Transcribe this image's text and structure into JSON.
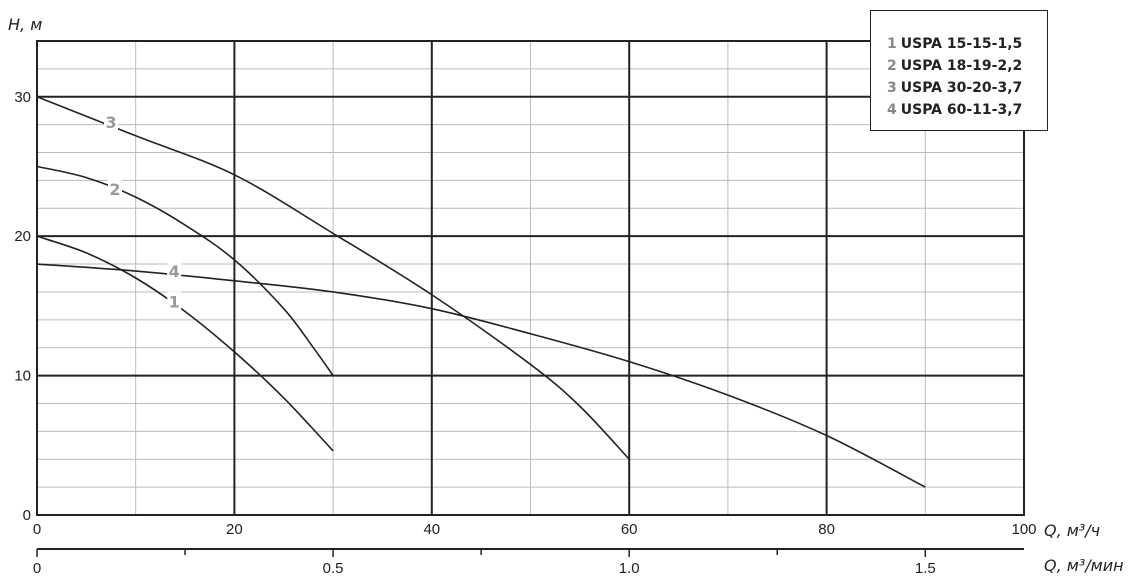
{
  "chart_data": {
    "type": "line",
    "ylabel": "H, м",
    "xlabel": "Q, м³/ч",
    "xlabel2": "Q, м³/мин",
    "xlim": [
      0,
      100
    ],
    "ylim": [
      0,
      34
    ],
    "xticks": [
      "0",
      "20",
      "40",
      "60",
      "80",
      "100"
    ],
    "yticks": [
      "0",
      "10",
      "20",
      "30"
    ],
    "x2ticks": [
      "0",
      "0.5",
      "1.0",
      "1.5"
    ],
    "x2ticks_values": [
      0,
      0.5,
      1.0,
      1.5
    ],
    "grid": true,
    "legend_position": "top-right",
    "series": [
      {
        "id": "1",
        "name": "USPA 15-15-1,5",
        "label_at": [
          13.9,
          15.3
        ],
        "x": [
          0,
          5,
          10,
          15,
          20,
          25,
          30
        ],
        "y": [
          20,
          18.8,
          17,
          14.6,
          11.7,
          8.4,
          4.6
        ]
      },
      {
        "id": "2",
        "name": "USPA 18-19-2,2",
        "label_at": [
          7.9,
          23.4
        ],
        "x": [
          0,
          5,
          10,
          15,
          20,
          25,
          28,
          30
        ],
        "y": [
          25,
          24.2,
          22.8,
          20.8,
          18.3,
          14.8,
          12,
          10
        ]
      },
      {
        "id": "3",
        "name": "USPA 30-20-3,7",
        "label_at": [
          7.5,
          28.2
        ],
        "x": [
          0,
          10,
          20,
          30,
          40,
          50,
          55,
          60
        ],
        "y": [
          30,
          27.2,
          24.4,
          20.2,
          15.8,
          10.8,
          7.8,
          4
        ]
      },
      {
        "id": "4",
        "name": "USPA 60-11-3,7",
        "label_at": [
          13.9,
          17.5
        ],
        "x": [
          0,
          10,
          20,
          30,
          40,
          50,
          60,
          70,
          80,
          90
        ],
        "y": [
          18,
          17.5,
          16.8,
          16,
          14.8,
          13,
          11,
          8.6,
          5.7,
          2
        ]
      }
    ],
    "colors": {
      "line": "#222222",
      "grid_major": "#222222",
      "grid_minor": "#bbbbbb",
      "curve_label": "#999999"
    }
  }
}
